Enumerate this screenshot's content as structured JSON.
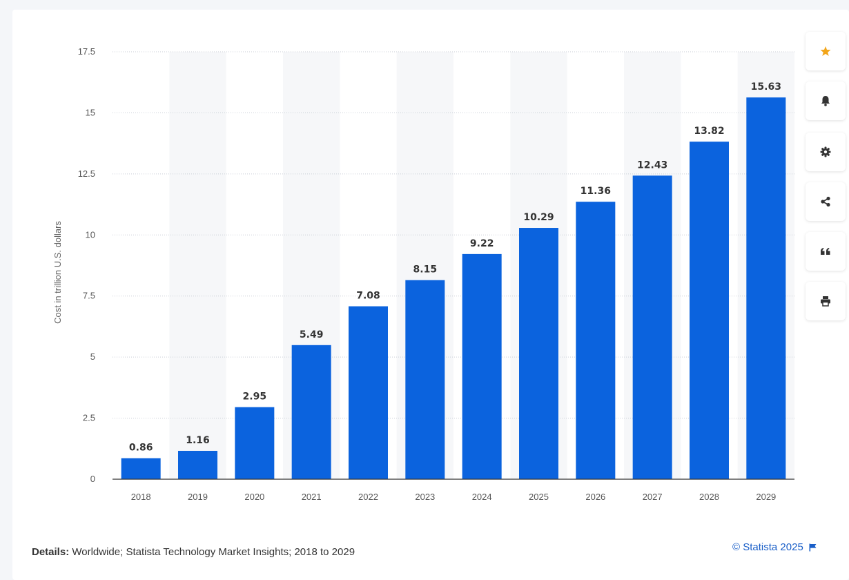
{
  "chart_data": {
    "type": "bar",
    "categories": [
      "2018",
      "2019",
      "2020",
      "2021",
      "2022",
      "2023",
      "2024",
      "2025",
      "2026",
      "2027",
      "2028",
      "2029"
    ],
    "values": [
      0.86,
      1.16,
      2.95,
      5.49,
      7.08,
      8.15,
      9.22,
      10.29,
      11.36,
      12.43,
      13.82,
      15.63
    ],
    "value_labels": [
      "0.86",
      "1.16",
      "2.95",
      "5.49",
      "7.08",
      "8.15",
      "9.22",
      "10.29",
      "11.36",
      "12.43",
      "13.82",
      "15.63"
    ],
    "ylabel": "Cost in trillion U.S. dollars",
    "yticks": [
      0,
      2.5,
      5,
      7.5,
      10,
      12.5,
      15,
      17.5
    ],
    "ytick_labels": [
      "0",
      "2.5",
      "5",
      "7.5",
      "10",
      "12.5",
      "15",
      "17.5"
    ],
    "ylim": [
      0,
      17.5
    ],
    "grid": true,
    "legend": "none",
    "bar_color": "#0b63de"
  },
  "toolbar": {
    "buttons": [
      {
        "name": "favorite",
        "icon": "star-icon",
        "color": "#f2a51a"
      },
      {
        "name": "notification",
        "icon": "bell-icon",
        "color": "#333333"
      },
      {
        "name": "settings",
        "icon": "gear-icon",
        "color": "#333333"
      },
      {
        "name": "share",
        "icon": "share-icon",
        "color": "#333333"
      },
      {
        "name": "cite",
        "icon": "quote-icon",
        "color": "#333333"
      },
      {
        "name": "print",
        "icon": "printer-icon",
        "color": "#333333"
      }
    ]
  },
  "footer": {
    "details_label": "Details:",
    "details_text": " Worldwide; Statista Technology Market Insights; 2018 to 2029",
    "credit": "© Statista 2025"
  }
}
